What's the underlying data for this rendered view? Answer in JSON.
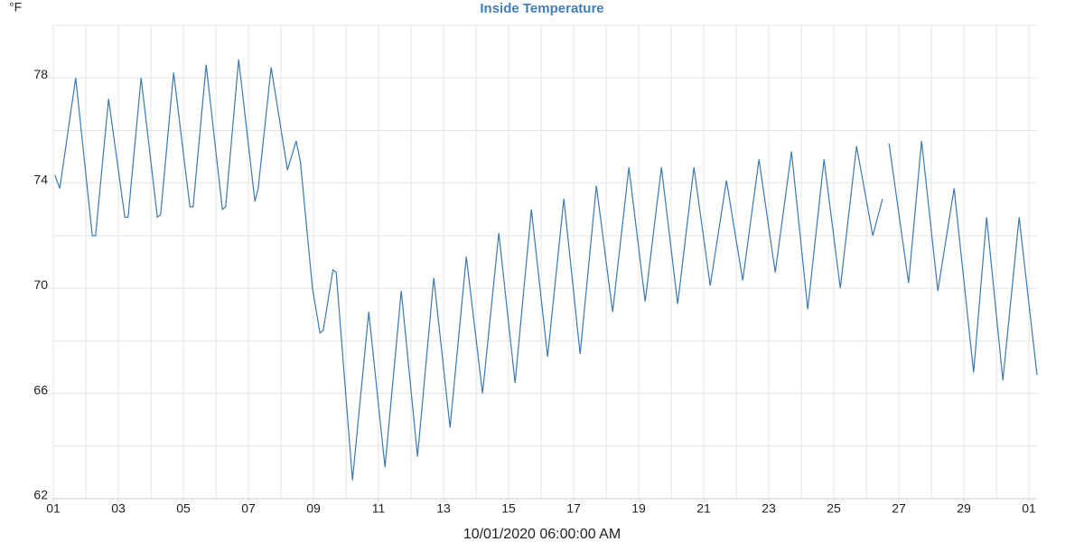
{
  "chart_data": {
    "type": "line",
    "title": "Inside Temperature",
    "y_unit": "°F",
    "x_label": "10/01/2020 06:00:00 AM",
    "x": [
      0.05,
      0.2,
      0.69,
      1.2,
      1.3,
      1.7,
      2.2,
      2.3,
      2.7,
      3.2,
      3.3,
      3.7,
      4.2,
      4.3,
      4.7,
      5.2,
      5.3,
      5.7,
      6.2,
      6.3,
      6.7,
      7.2,
      7.47,
      7.6,
      7.97,
      8.2,
      8.3,
      8.6,
      8.7,
      9.2,
      9.7,
      10.2,
      10.7,
      11.2,
      11.7,
      12.2,
      12.7,
      13.2,
      13.7,
      14.2,
      14.7,
      15.2,
      15.7,
      16.2,
      16.7,
      17.2,
      17.7,
      18.2,
      18.7,
      19.2,
      19.7,
      20.2,
      20.7,
      21.2,
      21.7,
      22.2,
      22.7,
      23.2,
      23.7,
      24.2,
      24.7,
      25.2,
      25.5,
      25.6,
      25.7,
      26.3,
      26.7,
      27.2,
      27.7,
      28.3,
      28.7,
      29.2,
      29.7,
      30.25
    ],
    "series": [
      {
        "name": "Inside Temperature",
        "color": "#3a79b4",
        "values": [
          74.3,
          73.8,
          78.0,
          72.0,
          72.0,
          77.2,
          72.7,
          72.7,
          78.0,
          72.7,
          72.8,
          78.2,
          73.1,
          73.1,
          78.5,
          73.0,
          73.1,
          78.7,
          73.3,
          73.8,
          78.4,
          74.5,
          75.6,
          74.8,
          70.0,
          68.3,
          68.4,
          70.7,
          70.6,
          62.7,
          69.1,
          63.2,
          69.9,
          63.6,
          70.4,
          64.7,
          71.2,
          66.0,
          72.1,
          66.4,
          73.0,
          67.4,
          73.4,
          67.5,
          73.9,
          69.1,
          74.6,
          69.5,
          74.6,
          69.4,
          74.6,
          70.1,
          74.1,
          70.3,
          74.9,
          70.6,
          75.2,
          69.2,
          74.9,
          70.0,
          75.4,
          72.0,
          73.4,
          null,
          75.5,
          70.2,
          75.6,
          69.9,
          73.8,
          66.8,
          72.7,
          66.5,
          72.7,
          66.7
        ]
      }
    ],
    "xlim": [
      0,
      30.25
    ],
    "xticks": [
      {
        "value": 0,
        "label": "01"
      },
      {
        "value": 2,
        "label": "03"
      },
      {
        "value": 4,
        "label": "05"
      },
      {
        "value": 6,
        "label": "07"
      },
      {
        "value": 8,
        "label": "09"
      },
      {
        "value": 10,
        "label": "11"
      },
      {
        "value": 12,
        "label": "13"
      },
      {
        "value": 14,
        "label": "15"
      },
      {
        "value": 16,
        "label": "17"
      },
      {
        "value": 18,
        "label": "19"
      },
      {
        "value": 20,
        "label": "21"
      },
      {
        "value": 22,
        "label": "23"
      },
      {
        "value": 24,
        "label": "25"
      },
      {
        "value": 26,
        "label": "27"
      },
      {
        "value": 28,
        "label": "29"
      },
      {
        "value": 30,
        "label": "01"
      }
    ],
    "ylim": [
      62,
      80
    ],
    "yticks": [
      62,
      66,
      70,
      74,
      78
    ],
    "x_grid_step": 1,
    "y_grid_step": 2,
    "grid": true
  }
}
